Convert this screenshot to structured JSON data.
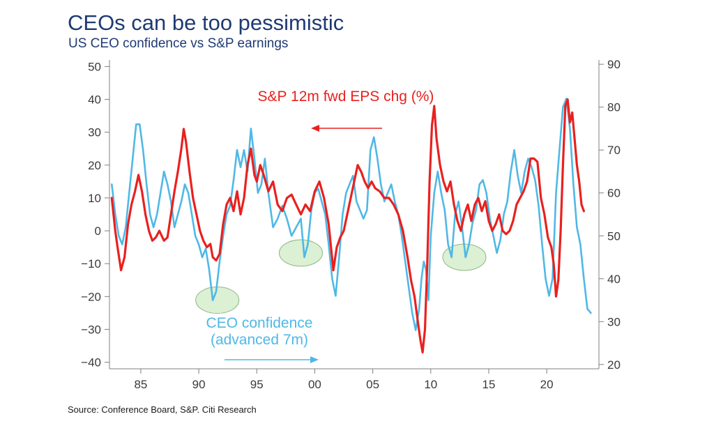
{
  "title": "CEOs can be too pessimistic",
  "subtitle": "US CEO confidence vs S&P earnings",
  "source": "Source: Conference Board, S&P.  Citi Research",
  "chart_data": {
    "type": "line",
    "x_tick_labels": [
      "85",
      "90",
      "95",
      "00",
      "05",
      "10",
      "15",
      "20"
    ],
    "x_ticks": [
      1985,
      1990,
      1995,
      2000,
      2005,
      2010,
      2015,
      2020
    ],
    "xlim": [
      1982.3,
      2024.5
    ],
    "y_left": {
      "ticks": [
        -40,
        -30,
        -20,
        -10,
        0,
        10,
        20,
        30,
        40,
        50
      ],
      "tick_labels": [
        "−40",
        "−30",
        "−20",
        "−10",
        "0",
        "10",
        "20",
        "30",
        "40",
        "50"
      ],
      "lim": [
        -42,
        52
      ]
    },
    "y_right": {
      "ticks": [
        20,
        30,
        40,
        50,
        60,
        70,
        80,
        90
      ],
      "tick_labels": [
        "20",
        "30",
        "40",
        "50",
        "60",
        "70",
        "80",
        "90"
      ],
      "lim": [
        19,
        91
      ]
    },
    "grid": false,
    "series": [
      {
        "name": "S&P 12m fwd EPS chg (%)",
        "axis": "left",
        "color": "#e8211f",
        "x": [
          1982.5,
          1982.8,
          1983.0,
          1983.3,
          1983.6,
          1983.9,
          1984.2,
          1984.5,
          1984.8,
          1985.1,
          1985.4,
          1985.7,
          1986.0,
          1986.3,
          1986.6,
          1987.0,
          1987.3,
          1987.6,
          1987.9,
          1988.2,
          1988.5,
          1988.7,
          1988.9,
          1989.2,
          1989.5,
          1989.8,
          1990.1,
          1990.4,
          1990.7,
          1991.0,
          1991.2,
          1991.5,
          1991.8,
          1992.1,
          1992.4,
          1992.7,
          1993.0,
          1993.3,
          1993.6,
          1993.9,
          1994.2,
          1994.5,
          1994.8,
          1995.0,
          1995.3,
          1995.6,
          1996.0,
          1996.4,
          1996.8,
          1997.2,
          1997.6,
          1998.0,
          1998.4,
          1998.8,
          1999.2,
          1999.6,
          2000.0,
          2000.4,
          2000.8,
          2001.2,
          2001.6,
          2001.9,
          2002.2,
          2002.5,
          2002.8,
          2003.1,
          2003.4,
          2003.7,
          2004.0,
          2004.3,
          2004.6,
          2004.9,
          2005.2,
          2005.6,
          2006.0,
          2006.4,
          2006.8,
          2007.2,
          2007.6,
          2008.0,
          2008.3,
          2008.6,
          2008.9,
          2009.1,
          2009.3,
          2009.5,
          2009.7,
          2009.9,
          2010.1,
          2010.3,
          2010.5,
          2010.8,
          2011.1,
          2011.4,
          2011.7,
          2012.0,
          2012.3,
          2012.6,
          2012.9,
          2013.2,
          2013.5,
          2013.8,
          2014.1,
          2014.4,
          2014.7,
          2015.0,
          2015.3,
          2015.6,
          2015.9,
          2016.2,
          2016.5,
          2016.8,
          2017.1,
          2017.4,
          2017.7,
          2018.0,
          2018.3,
          2018.6,
          2018.9,
          2019.2,
          2019.5,
          2019.8,
          2020.1,
          2020.4,
          2020.6,
          2020.8,
          2021.0,
          2021.2,
          2021.4,
          2021.6,
          2021.8,
          2022.0,
          2022.2,
          2022.4,
          2022.6,
          2022.8,
          2023.0,
          2023.2
        ],
        "values": [
          10,
          0,
          -5,
          -12,
          -8,
          2,
          8,
          12,
          17,
          12,
          5,
          0,
          -3,
          -2,
          0,
          -3,
          -2,
          5,
          12,
          18,
          25,
          31,
          27,
          18,
          10,
          5,
          0,
          -3,
          -5,
          -4,
          -8,
          -9,
          -7,
          2,
          8,
          10,
          6,
          12,
          5,
          10,
          20,
          25,
          17,
          15,
          20,
          17,
          12,
          15,
          8,
          6,
          10,
          11,
          8,
          5,
          8,
          6,
          12,
          15,
          10,
          2,
          -12,
          -5,
          -2,
          0,
          5,
          10,
          15,
          20,
          18,
          15,
          13,
          15,
          13,
          12,
          10,
          10,
          8,
          5,
          0,
          -8,
          -15,
          -20,
          -28,
          -33,
          -37,
          -30,
          -10,
          15,
          32,
          38,
          28,
          20,
          15,
          12,
          15,
          8,
          3,
          0,
          5,
          8,
          3,
          8,
          10,
          6,
          9,
          3,
          0,
          2,
          5,
          0,
          -1,
          0,
          3,
          8,
          10,
          12,
          15,
          22,
          22,
          21,
          10,
          5,
          -2,
          -5,
          -10,
          -20,
          -15,
          0,
          20,
          38,
          40,
          33,
          36,
          28,
          20,
          15,
          8,
          6
        ]
      },
      {
        "name": "CEO confidence (advanced 7m)",
        "axis": "right",
        "color": "#4fb8e6",
        "x": [
          1982.5,
          1982.8,
          1983.1,
          1983.4,
          1983.7,
          1984.0,
          1984.3,
          1984.6,
          1984.9,
          1985.2,
          1985.5,
          1985.8,
          1986.1,
          1986.4,
          1986.7,
          1987.0,
          1987.3,
          1987.6,
          1987.9,
          1988.2,
          1988.5,
          1988.8,
          1989.1,
          1989.4,
          1989.7,
          1990.0,
          1990.3,
          1990.6,
          1990.9,
          1991.2,
          1991.5,
          1991.8,
          1992.1,
          1992.4,
          1992.7,
          1993.0,
          1993.3,
          1993.6,
          1993.9,
          1994.2,
          1994.5,
          1994.8,
          1995.1,
          1995.4,
          1995.7,
          1996.0,
          1996.4,
          1996.8,
          1997.2,
          1997.6,
          1998.0,
          1998.4,
          1998.8,
          1999.1,
          1999.4,
          1999.7,
          2000.0,
          2000.3,
          2000.6,
          2000.9,
          2001.2,
          2001.5,
          2001.8,
          2002.1,
          2002.4,
          2002.7,
          2003.0,
          2003.3,
          2003.6,
          2003.9,
          2004.2,
          2004.5,
          2004.8,
          2005.1,
          2005.4,
          2005.7,
          2006.0,
          2006.3,
          2006.6,
          2006.9,
          2007.2,
          2007.5,
          2007.8,
          2008.1,
          2008.4,
          2008.7,
          2009.0,
          2009.2,
          2009.4,
          2009.6,
          2009.8,
          2010.0,
          2010.3,
          2010.6,
          2010.9,
          2011.2,
          2011.5,
          2011.8,
          2012.1,
          2012.4,
          2012.7,
          2013.0,
          2013.3,
          2013.6,
          2013.9,
          2014.2,
          2014.5,
          2014.8,
          2015.1,
          2015.4,
          2015.7,
          2016.0,
          2016.3,
          2016.6,
          2016.9,
          2017.2,
          2017.5,
          2017.8,
          2018.1,
          2018.4,
          2018.7,
          2019.0,
          2019.3,
          2019.6,
          2019.9,
          2020.2,
          2020.5,
          2020.8,
          2021.1,
          2021.4,
          2021.7,
          2022.0,
          2022.3,
          2022.6,
          2022.9,
          2023.2,
          2023.5,
          2023.8
        ],
        "values": [
          62,
          55,
          50,
          48,
          52,
          60,
          68,
          76,
          76,
          70,
          62,
          55,
          52,
          55,
          60,
          65,
          62,
          58,
          52,
          55,
          58,
          62,
          60,
          55,
          50,
          48,
          45,
          47,
          42,
          35,
          37,
          44,
          50,
          55,
          57,
          63,
          70,
          66,
          70,
          65,
          75,
          68,
          60,
          62,
          68,
          60,
          52,
          54,
          57,
          54,
          50,
          52,
          54,
          45,
          48,
          56,
          60,
          61,
          58,
          55,
          48,
          40,
          36,
          45,
          55,
          60,
          62,
          64,
          58,
          56,
          54,
          56,
          70,
          73,
          68,
          62,
          58,
          60,
          62,
          58,
          55,
          50,
          44,
          38,
          32,
          28,
          33,
          40,
          44,
          42,
          35,
          50,
          60,
          65,
          60,
          56,
          48,
          45,
          55,
          58,
          52,
          45,
          48,
          53,
          56,
          62,
          63,
          60,
          54,
          50,
          46,
          49,
          55,
          58,
          65,
          70,
          64,
          60,
          65,
          68,
          66,
          63,
          57,
          48,
          40,
          36,
          40,
          60,
          70,
          80,
          82,
          75,
          62,
          52,
          48,
          40,
          33,
          32
        ]
      }
    ],
    "annotations": [
      {
        "text": "S&P 12m fwd EPS chg (%)",
        "color": "#e8211f"
      },
      {
        "text": "CEO confidence",
        "color": "#4fb8e6"
      },
      {
        "text": "(advanced 7m)",
        "color": "#4fb8e6"
      }
    ],
    "highlighted_troughs": [
      {
        "x": 1991.6,
        "y_right": 35
      },
      {
        "x": 1998.8,
        "y_right": 46
      },
      {
        "x": 2012.9,
        "y_right": 45
      }
    ]
  }
}
